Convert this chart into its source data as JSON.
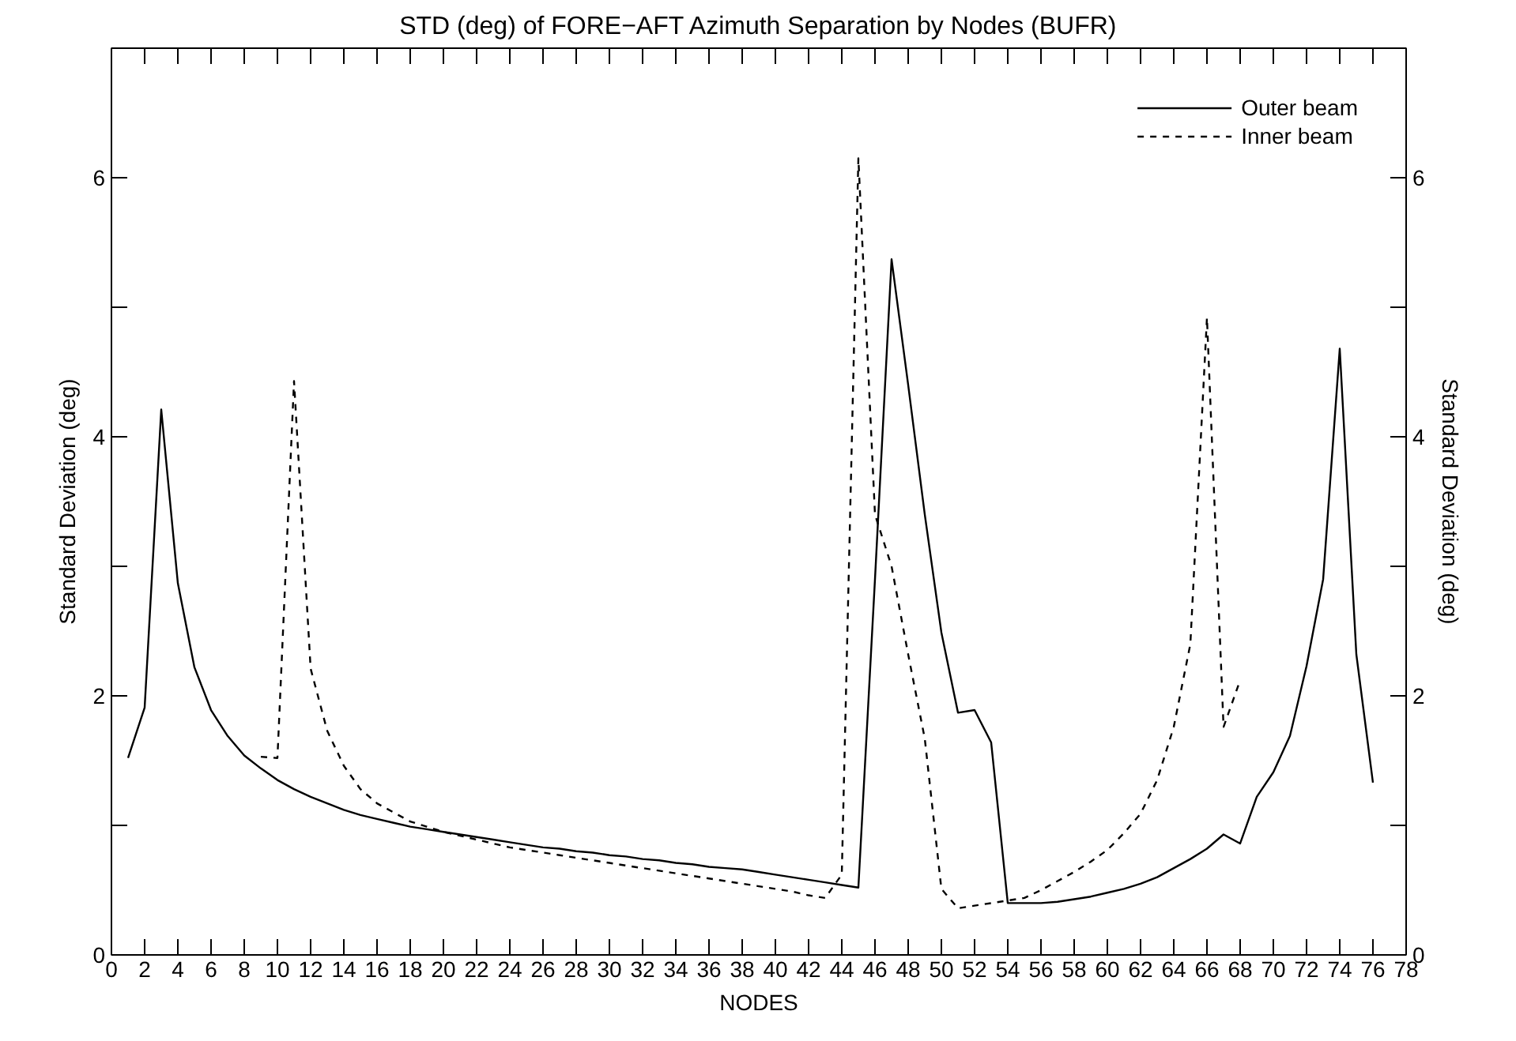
{
  "chart_data": {
    "type": "line",
    "title": "STD (deg) of FORE−AFT Azimuth Separation by Nodes (BUFR)",
    "xlabel": "NODES",
    "ylabel": "Standard Deviation (deg)",
    "y2label": "Standard Deviation (deg)",
    "xlim": [
      0,
      78
    ],
    "xticks": [
      0,
      2,
      4,
      6,
      8,
      10,
      12,
      14,
      16,
      18,
      20,
      22,
      24,
      26,
      28,
      30,
      32,
      34,
      36,
      38,
      40,
      42,
      44,
      46,
      48,
      50,
      52,
      54,
      56,
      58,
      60,
      62,
      64,
      66,
      68,
      70,
      72,
      74,
      76,
      78
    ],
    "ylim": [
      0,
      7
    ],
    "yticks": [
      0,
      {
        "value": 1,
        "label": null
      },
      2,
      {
        "value": 3,
        "label": null
      },
      4,
      {
        "value": 5,
        "label": null
      },
      6,
      {
        "value": 7,
        "label": null
      }
    ],
    "y2lim": [
      0,
      7
    ],
    "y2ticks": [
      0,
      {
        "value": 1,
        "label": null
      },
      2,
      {
        "value": 3,
        "label": null
      },
      4,
      {
        "value": 5,
        "label": null
      },
      6,
      {
        "value": 7,
        "label": null
      }
    ],
    "grid": false,
    "legend": "top right",
    "marker": "none",
    "series": [
      {
        "name": "Outer beam",
        "color": "#000000",
        "line_style": "solid",
        "x": [
          1,
          2,
          3,
          4,
          5,
          6,
          7,
          8,
          9,
          10,
          11,
          12,
          13,
          14,
          15,
          16,
          17,
          18,
          19,
          20,
          21,
          22,
          23,
          24,
          25,
          26,
          27,
          28,
          29,
          30,
          31,
          32,
          33,
          34,
          35,
          36,
          37,
          38,
          39,
          40,
          41,
          42,
          43,
          44,
          45,
          46,
          47,
          48,
          49,
          50,
          51,
          52,
          53,
          54,
          55,
          56,
          57,
          58,
          59,
          60,
          61,
          62,
          63,
          64,
          65,
          66,
          67,
          68,
          69,
          70,
          71,
          72,
          73,
          74,
          75,
          76
        ],
        "values": [
          1.52,
          1.91,
          4.21,
          2.87,
          2.22,
          1.89,
          1.69,
          1.54,
          1.44,
          1.35,
          1.28,
          1.22,
          1.17,
          1.12,
          1.08,
          1.05,
          1.02,
          0.99,
          0.97,
          0.95,
          0.93,
          0.91,
          0.89,
          0.87,
          0.85,
          0.83,
          0.82,
          0.8,
          0.79,
          0.77,
          0.76,
          0.74,
          0.73,
          0.71,
          0.7,
          0.68,
          0.67,
          0.66,
          0.64,
          0.62,
          0.6,
          0.58,
          0.56,
          0.54,
          0.52,
          2.9,
          5.37,
          4.4,
          3.4,
          2.49,
          1.87,
          1.89,
          1.64,
          0.4,
          0.4,
          0.4,
          0.41,
          0.43,
          0.45,
          0.48,
          0.51,
          0.55,
          0.6,
          0.67,
          0.74,
          0.82,
          0.93,
          0.86,
          1.22,
          1.41,
          1.69,
          2.23,
          2.9,
          4.68,
          2.32,
          1.33
        ]
      },
      {
        "name": "Inner beam",
        "color": "#000000",
        "line_style": "dashed",
        "x": [
          9,
          10,
          11,
          12,
          13,
          14,
          15,
          16,
          17,
          18,
          19,
          20,
          21,
          22,
          23,
          24,
          25,
          26,
          27,
          28,
          29,
          30,
          31,
          32,
          33,
          34,
          35,
          36,
          37,
          38,
          39,
          40,
          41,
          42,
          43,
          44,
          45,
          46,
          47,
          48,
          49,
          50,
          51,
          52,
          53,
          54,
          55,
          56,
          57,
          58,
          59,
          60,
          61,
          62,
          63,
          64,
          65,
          66,
          67,
          68
        ],
        "values": [
          1.53,
          1.52,
          4.43,
          2.21,
          1.73,
          1.46,
          1.28,
          1.17,
          1.1,
          1.03,
          0.99,
          0.95,
          0.92,
          0.89,
          0.86,
          0.83,
          0.81,
          0.79,
          0.77,
          0.75,
          0.73,
          0.71,
          0.69,
          0.67,
          0.65,
          0.63,
          0.61,
          0.59,
          0.57,
          0.55,
          0.53,
          0.51,
          0.49,
          0.46,
          0.44,
          0.62,
          6.15,
          3.4,
          3.0,
          2.32,
          1.67,
          0.51,
          0.36,
          0.38,
          0.4,
          0.42,
          0.44,
          0.5,
          0.57,
          0.64,
          0.72,
          0.81,
          0.94,
          1.09,
          1.35,
          1.76,
          2.4,
          4.92,
          1.76,
          2.12
        ]
      }
    ]
  }
}
